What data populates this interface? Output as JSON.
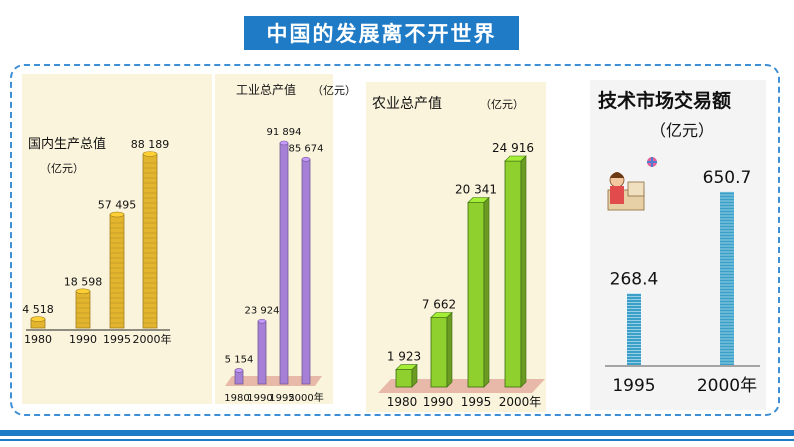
{
  "header": {
    "title": "中国的发展离不开世界"
  },
  "chart_data": [
    {
      "type": "bar",
      "title": "国内生产总值",
      "unit": "（亿元）",
      "categories": [
        "1980",
        "1990",
        "1995",
        "2000年"
      ],
      "values": [
        4518,
        18598,
        57495,
        88189
      ],
      "value_labels": [
        "4 518",
        "18 598",
        "57 495",
        "88 189"
      ],
      "color": "#e3b52e"
    },
    {
      "type": "bar",
      "title": "工业总产值",
      "unit": "（亿元）",
      "categories": [
        "1980",
        "1990",
        "1995",
        "2000年"
      ],
      "values": [
        5154,
        23924,
        91894,
        85674
      ],
      "value_labels": [
        "5 154",
        "23 924",
        "91 894",
        "85 674"
      ],
      "color": "#a580d6"
    },
    {
      "type": "bar",
      "title": "农业总产值",
      "unit": "（亿元）",
      "categories": [
        "1980",
        "1990",
        "1995",
        "2000年"
      ],
      "values": [
        1923,
        7662,
        20341,
        24916
      ],
      "value_labels": [
        "1 923",
        "7 662",
        "20 341",
        "24 916"
      ],
      "color": "#8fcf2e"
    },
    {
      "type": "bar",
      "title": "技术市场交易额",
      "unit": "（亿元）",
      "categories": [
        "1995",
        "2000年"
      ],
      "values": [
        268.4,
        650.7
      ],
      "value_labels": [
        "268.4",
        "650.7"
      ],
      "color": "#3aa0c8"
    }
  ]
}
